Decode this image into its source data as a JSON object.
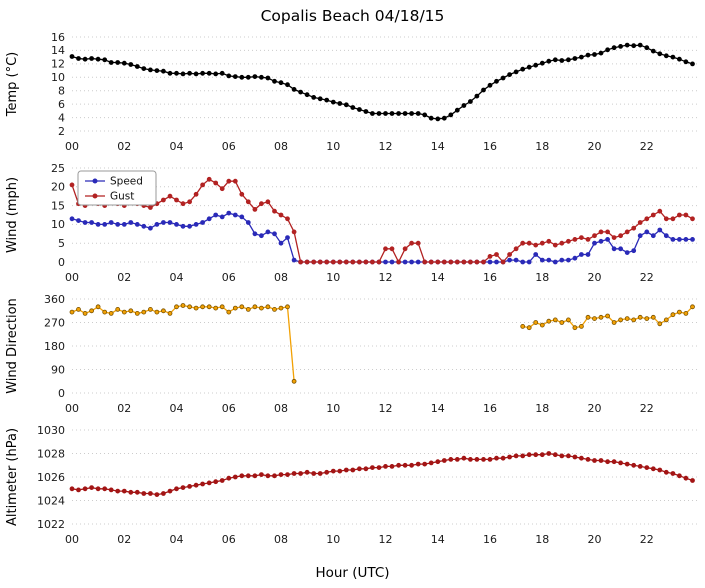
{
  "title": "Copalis Beach 04/18/15",
  "x_axis": {
    "label": "Hour (UTC)",
    "range": [
      0,
      24
    ],
    "ticks": [
      0,
      2,
      4,
      6,
      8,
      10,
      12,
      14,
      16,
      18,
      20,
      22
    ],
    "tick_labels": [
      "00",
      "02",
      "04",
      "06",
      "08",
      "10",
      "12",
      "14",
      "16",
      "18",
      "20",
      "22"
    ]
  },
  "x_hours": [
    0,
    0.25,
    0.5,
    0.75,
    1,
    1.25,
    1.5,
    1.75,
    2,
    2.25,
    2.5,
    2.75,
    3,
    3.25,
    3.5,
    3.75,
    4,
    4.25,
    4.5,
    4.75,
    5,
    5.25,
    5.5,
    5.75,
    6,
    6.25,
    6.5,
    6.75,
    7,
    7.25,
    7.5,
    7.75,
    8,
    8.25,
    8.5,
    8.75,
    9,
    9.25,
    9.5,
    9.75,
    10,
    10.25,
    10.5,
    10.75,
    11,
    11.25,
    11.5,
    11.75,
    12,
    12.25,
    12.5,
    12.75,
    13,
    13.25,
    13.5,
    13.75,
    14,
    14.25,
    14.5,
    14.75,
    15,
    15.25,
    15.5,
    15.75,
    16,
    16.25,
    16.5,
    16.75,
    17,
    17.25,
    17.5,
    17.75,
    18,
    18.25,
    18.5,
    18.75,
    19,
    19.25,
    19.5,
    19.75,
    20,
    20.25,
    20.5,
    20.75,
    21,
    21.25,
    21.5,
    21.75,
    22,
    22.25,
    22.5,
    22.75,
    23,
    23.25,
    23.5,
    23.75
  ],
  "chart_data": [
    {
      "type": "line",
      "name": "temperature",
      "ylabel": "Temp (°C)",
      "ylim": [
        2,
        16
      ],
      "yticks": [
        2,
        4,
        6,
        8,
        10,
        12,
        14,
        16
      ],
      "series": [
        {
          "name": "Temp",
          "color": "#000000",
          "values": [
            13.1,
            12.8,
            12.7,
            12.8,
            12.7,
            12.6,
            12.2,
            12.2,
            12.1,
            11.9,
            11.6,
            11.3,
            11.1,
            11.0,
            10.9,
            10.6,
            10.6,
            10.5,
            10.6,
            10.5,
            10.6,
            10.6,
            10.5,
            10.6,
            10.2,
            10.1,
            10.0,
            10.0,
            10.1,
            10.0,
            9.9,
            9.4,
            9.2,
            8.9,
            8.2,
            7.8,
            7.4,
            7.0,
            6.8,
            6.6,
            6.3,
            6.1,
            5.9,
            5.5,
            5.2,
            4.9,
            4.6,
            4.6,
            4.6,
            4.6,
            4.6,
            4.6,
            4.6,
            4.6,
            4.4,
            3.9,
            3.8,
            3.9,
            4.4,
            5.1,
            5.8,
            6.4,
            7.2,
            8.1,
            8.8,
            9.4,
            9.9,
            10.4,
            10.8,
            11.2,
            11.5,
            11.8,
            12.1,
            12.4,
            12.6,
            12.5,
            12.6,
            12.8,
            13.0,
            13.3,
            13.4,
            13.6,
            14.1,
            14.4,
            14.6,
            14.8,
            14.7,
            14.8,
            14.4,
            13.9,
            13.5,
            13.2,
            13.0,
            12.7,
            12.3,
            12.0
          ]
        }
      ]
    },
    {
      "type": "line",
      "name": "wind",
      "ylabel": "Wind (mph)",
      "ylim": [
        0,
        25
      ],
      "yticks": [
        0,
        5,
        10,
        15,
        20,
        25
      ],
      "legend": {
        "position": "upper-left",
        "entries": [
          "Speed",
          "Gust"
        ]
      },
      "series": [
        {
          "name": "Speed",
          "color": "#2a2ab8",
          "values": [
            11.5,
            11.0,
            10.5,
            10.5,
            10.0,
            10.0,
            10.5,
            10.0,
            10.0,
            10.5,
            10.0,
            9.5,
            9.0,
            10.0,
            10.5,
            10.5,
            10.0,
            9.5,
            9.5,
            10.0,
            10.5,
            11.5,
            12.5,
            12.0,
            13.0,
            12.5,
            12.0,
            10.5,
            7.5,
            7.0,
            8.0,
            7.5,
            5.0,
            6.5,
            0.5,
            0.0,
            0.0,
            0.0,
            0.0,
            0.0,
            0.0,
            0.0,
            0.0,
            0.0,
            0.0,
            0.0,
            0.0,
            0.0,
            0.0,
            0.0,
            0.0,
            0.0,
            0.0,
            0.0,
            0.0,
            0.0,
            0.0,
            0.0,
            0.0,
            0.0,
            0.0,
            0.0,
            0.0,
            0.0,
            0.0,
            0.0,
            0.0,
            0.5,
            0.5,
            0.0,
            0.0,
            2.0,
            0.5,
            0.5,
            0.0,
            0.5,
            0.5,
            1.0,
            2.0,
            2.0,
            5.0,
            5.5,
            6.0,
            3.5,
            3.5,
            2.5,
            3.0,
            7.0,
            8.0,
            7.0,
            8.5,
            7.0,
            6.0,
            6.0,
            6.0,
            6.0
          ]
        },
        {
          "name": "Gust",
          "color": "#b22222",
          "values": [
            20.5,
            15.5,
            15.0,
            16.0,
            15.5,
            15.0,
            16.0,
            15.5,
            15.0,
            16.0,
            15.5,
            15.0,
            14.5,
            15.5,
            16.5,
            17.5,
            16.5,
            15.5,
            16.0,
            18.0,
            20.5,
            22.0,
            21.0,
            19.5,
            21.5,
            21.5,
            18.0,
            16.0,
            14.0,
            15.5,
            16.0,
            13.5,
            12.5,
            11.5,
            8.0,
            0.0,
            0.0,
            0.0,
            0.0,
            0.0,
            0.0,
            0.0,
            0.0,
            0.0,
            0.0,
            0.0,
            0.0,
            0.0,
            3.5,
            3.5,
            0.0,
            3.5,
            5.0,
            5.0,
            0.0,
            0.0,
            0.0,
            0.0,
            0.0,
            0.0,
            0.0,
            0.0,
            0.0,
            0.0,
            1.5,
            2.0,
            0.0,
            2.0,
            3.5,
            5.0,
            5.0,
            4.5,
            5.0,
            5.5,
            4.5,
            5.0,
            5.5,
            6.0,
            6.5,
            6.0,
            7.0,
            8.0,
            8.0,
            6.5,
            7.0,
            8.0,
            9.0,
            10.5,
            11.5,
            12.5,
            13.5,
            11.5,
            11.5,
            12.5,
            12.5,
            11.5
          ]
        }
      ]
    },
    {
      "type": "line",
      "name": "wind-direction",
      "ylabel": "Wind Direction",
      "ylim": [
        0,
        360
      ],
      "yticks": [
        0,
        90,
        180,
        270,
        360
      ],
      "series": [
        {
          "name": "Direction",
          "color": "#f2a104",
          "edge": "#7a5200",
          "values": [
            310,
            320,
            305,
            315,
            330,
            310,
            305,
            320,
            310,
            315,
            305,
            310,
            320,
            310,
            315,
            305,
            330,
            335,
            330,
            325,
            330,
            330,
            325,
            330,
            310,
            325,
            330,
            320,
            330,
            325,
            330,
            320,
            325,
            330,
            45,
            null,
            null,
            null,
            null,
            null,
            null,
            null,
            null,
            null,
            null,
            null,
            null,
            null,
            null,
            null,
            null,
            null,
            null,
            null,
            null,
            null,
            null,
            null,
            null,
            null,
            null,
            null,
            null,
            null,
            null,
            null,
            null,
            null,
            null,
            255,
            250,
            270,
            260,
            275,
            280,
            270,
            280,
            250,
            255,
            290,
            285,
            290,
            295,
            270,
            280,
            285,
            280,
            290,
            285,
            290,
            265,
            280,
            300,
            310,
            305,
            330
          ]
        }
      ]
    },
    {
      "type": "line",
      "name": "altimeter",
      "ylabel": "Altimeter (hPa)",
      "ylim": [
        1022,
        1030
      ],
      "yticks": [
        1022,
        1024,
        1026,
        1028,
        1030
      ],
      "series": [
        {
          "name": "Altimeter",
          "color": "#a31515",
          "values": [
            1025.0,
            1024.9,
            1025.0,
            1025.1,
            1025.0,
            1025.0,
            1024.9,
            1024.8,
            1024.8,
            1024.7,
            1024.7,
            1024.6,
            1024.6,
            1024.5,
            1024.6,
            1024.8,
            1025.0,
            1025.1,
            1025.2,
            1025.3,
            1025.4,
            1025.5,
            1025.6,
            1025.7,
            1025.9,
            1026.0,
            1026.1,
            1026.1,
            1026.1,
            1026.2,
            1026.1,
            1026.1,
            1026.2,
            1026.2,
            1026.3,
            1026.3,
            1026.4,
            1026.3,
            1026.3,
            1026.4,
            1026.5,
            1026.5,
            1026.6,
            1026.6,
            1026.7,
            1026.7,
            1026.8,
            1026.8,
            1026.9,
            1026.9,
            1027.0,
            1027.0,
            1027.0,
            1027.1,
            1027.1,
            1027.2,
            1027.3,
            1027.4,
            1027.5,
            1027.5,
            1027.6,
            1027.5,
            1027.5,
            1027.5,
            1027.5,
            1027.6,
            1027.6,
            1027.7,
            1027.8,
            1027.8,
            1027.9,
            1027.9,
            1027.9,
            1028.0,
            1027.9,
            1027.8,
            1027.8,
            1027.7,
            1027.6,
            1027.5,
            1027.4,
            1027.4,
            1027.3,
            1027.3,
            1027.2,
            1027.1,
            1027.0,
            1026.9,
            1026.8,
            1026.7,
            1026.6,
            1026.4,
            1026.3,
            1026.1,
            1025.9,
            1025.7
          ]
        }
      ]
    }
  ]
}
